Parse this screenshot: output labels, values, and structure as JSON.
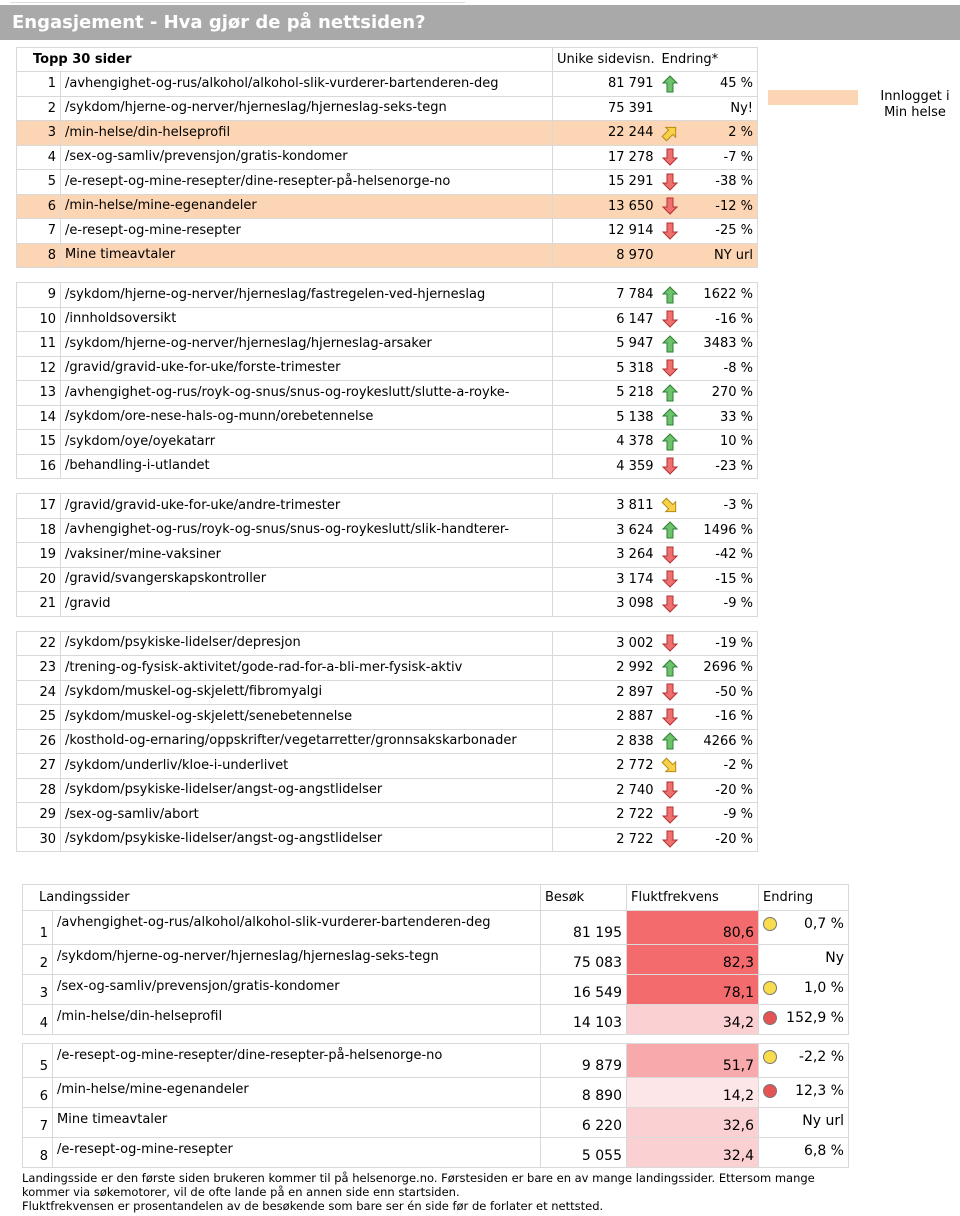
{
  "header": {
    "title": "Engasjement - Hva gjør de på nettsiden?"
  },
  "legend": {
    "label": "Innlogget i Min helse",
    "color": "#fcd5b4"
  },
  "top": {
    "columns": [
      "Topp 30 sider",
      "Unike sidevisn.",
      "Endring*"
    ],
    "highlight_color": "#fcd5b4",
    "groups": [
      [
        {
          "rank": "1",
          "page": "/avhengighet-og-rus/alkohol/alkohol-slik-vurderer-bartenderen-deg",
          "views": "81 791",
          "arrow": "up",
          "change": "45 %"
        },
        {
          "rank": "2",
          "page": "/sykdom/hjerne-og-nerver/hjerneslag/hjerneslag-seks-tegn",
          "views": "75 391",
          "arrow": "none",
          "change": "Ny!"
        },
        {
          "rank": "3",
          "page": "/min-helse/din-helseprofil",
          "views": "22 244",
          "arrow": "up-right",
          "change": "2 %",
          "highlight": true
        },
        {
          "rank": "4",
          "page": "/sex-og-samliv/prevensjon/gratis-kondomer",
          "views": "17 278",
          "arrow": "down",
          "change": "-7 %"
        },
        {
          "rank": "5",
          "page": "/e-resept-og-mine-resepter/dine-resepter-på-helsenorge-no",
          "views": "15 291",
          "arrow": "down",
          "change": "-38 %"
        },
        {
          "rank": "6",
          "page": "/min-helse/mine-egenandeler",
          "views": "13 650",
          "arrow": "down",
          "change": "-12 %",
          "highlight": true
        },
        {
          "rank": "7",
          "page": "/e-resept-og-mine-resepter",
          "views": "12 914",
          "arrow": "down",
          "change": "-25 %"
        },
        {
          "rank": "8",
          "page": "Mine timeavtaler",
          "views": "8 970",
          "arrow": "none",
          "change": "NY url",
          "highlight": true
        }
      ],
      [
        {
          "rank": "9",
          "page": "/sykdom/hjerne-og-nerver/hjerneslag/fastregelen-ved-hjerneslag",
          "views": "7 784",
          "arrow": "up",
          "change": "1622 %"
        },
        {
          "rank": "10",
          "page": "/innholdsoversikt",
          "views": "6 147",
          "arrow": "down",
          "change": "-16 %"
        },
        {
          "rank": "11",
          "page": "/sykdom/hjerne-og-nerver/hjerneslag/hjerneslag-arsaker",
          "views": "5 947",
          "arrow": "up",
          "change": "3483 %"
        },
        {
          "rank": "12",
          "page": "/gravid/gravid-uke-for-uke/forste-trimester",
          "views": "5 318",
          "arrow": "down",
          "change": "-8 %"
        },
        {
          "rank": "13",
          "page": "/avhengighet-og-rus/royk-og-snus/snus-og-roykeslutt/slutte-a-royke-",
          "views": "5 218",
          "arrow": "up",
          "change": "270 %"
        },
        {
          "rank": "14",
          "page": "/sykdom/ore-nese-hals-og-munn/orebetennelse",
          "views": "5 138",
          "arrow": "up",
          "change": "33 %"
        },
        {
          "rank": "15",
          "page": "/sykdom/oye/oyekatarr",
          "views": "4 378",
          "arrow": "up",
          "change": "10 %"
        },
        {
          "rank": "16",
          "page": "/behandling-i-utlandet",
          "views": "4 359",
          "arrow": "down",
          "change": "-23 %"
        }
      ],
      [
        {
          "rank": "17",
          "page": "/gravid/gravid-uke-for-uke/andre-trimester",
          "views": "3 811",
          "arrow": "down-right",
          "change": "-3 %"
        },
        {
          "rank": "18",
          "page": "/avhengighet-og-rus/royk-og-snus/snus-og-roykeslutt/slik-handterer-",
          "views": "3 624",
          "arrow": "up",
          "change": "1496 %"
        },
        {
          "rank": "19",
          "page": "/vaksiner/mine-vaksiner",
          "views": "3 264",
          "arrow": "down",
          "change": "-42 %"
        },
        {
          "rank": "20",
          "page": "/gravid/svangerskapskontroller",
          "views": "3 174",
          "arrow": "down",
          "change": "-15 %"
        },
        {
          "rank": "21",
          "page": "/gravid",
          "views": "3 098",
          "arrow": "down",
          "change": "-9 %"
        }
      ],
      [
        {
          "rank": "22",
          "page": "/sykdom/psykiske-lidelser/depresjon",
          "views": "3 002",
          "arrow": "down",
          "change": "-19 %"
        },
        {
          "rank": "23",
          "page": "/trening-og-fysisk-aktivitet/gode-rad-for-a-bli-mer-fysisk-aktiv",
          "views": "2 992",
          "arrow": "up",
          "change": "2696 %"
        },
        {
          "rank": "24",
          "page": "/sykdom/muskel-og-skjelett/fibromyalgi",
          "views": "2 897",
          "arrow": "down",
          "change": "-50 %"
        },
        {
          "rank": "25",
          "page": "/sykdom/muskel-og-skjelett/senebetennelse",
          "views": "2 887",
          "arrow": "down",
          "change": "-16 %"
        },
        {
          "rank": "26",
          "page": "/kosthold-og-ernaring/oppskrifter/vegetarretter/gronnsakskarbonader",
          "views": "2 838",
          "arrow": "up",
          "change": "4266 %"
        },
        {
          "rank": "27",
          "page": "/sykdom/underliv/kloe-i-underlivet",
          "views": "2 772",
          "arrow": "down-right",
          "change": "-2 %"
        },
        {
          "rank": "28",
          "page": "/sykdom/psykiske-lidelser/angst-og-angstlidelser",
          "views": "2 740",
          "arrow": "down",
          "change": "-20 %"
        },
        {
          "rank": "29",
          "page": "/sex-og-samliv/abort",
          "views": "2 722",
          "arrow": "down",
          "change": "-9 %"
        },
        {
          "rank": "30",
          "page": "/sykdom/psykiske-lidelser/angst-og-angstlidelser",
          "views": "2 722",
          "arrow": "down",
          "change": "-20 %"
        }
      ]
    ]
  },
  "landing": {
    "columns": [
      "Landingssider",
      "Besøk",
      "Fluktfrekvens",
      "Endring"
    ],
    "groups": [
      [
        {
          "rank": "1",
          "page": "/avhengighet-og-rus/alkohol/alkohol-slik-vurderer-bartenderen-deg",
          "visits": "81 195",
          "bounce": "80,6",
          "bounce_color": "#f46b6e",
          "dot": "yellow",
          "change": "0,7 %"
        },
        {
          "rank": "2",
          "page": "/sykdom/hjerne-og-nerver/hjerneslag/hjerneslag-seks-tegn",
          "visits": "75 083",
          "bounce": "82,3",
          "bounce_color": "#f46b6e",
          "dot": "none",
          "change": "Ny"
        },
        {
          "rank": "3",
          "page": "/sex-og-samliv/prevensjon/gratis-kondomer",
          "visits": "16 549",
          "bounce": "78,1",
          "bounce_color": "#f46b6e",
          "dot": "yellow",
          "change": "1,0 %"
        },
        {
          "rank": "4",
          "page": "/min-helse/din-helseprofil",
          "visits": "14 103",
          "bounce": "34,2",
          "bounce_color": "#fbd0d2",
          "dot": "red",
          "change": "152,9 %"
        }
      ],
      [
        {
          "rank": "5",
          "page": "/e-resept-og-mine-resepter/dine-resepter-på-helsenorge-no",
          "visits": "9 879",
          "bounce": "51,7",
          "bounce_color": "#f7a9ac",
          "dot": "yellow",
          "change": "-2,2 %"
        },
        {
          "rank": "6",
          "page": "/min-helse/mine-egenandeler",
          "visits": "8 890",
          "bounce": "14,2",
          "bounce_color": "#fde6e7",
          "dot": "red",
          "change": "12,3 %"
        },
        {
          "rank": "7",
          "page": "Mine timeavtaler",
          "visits": "6 220",
          "bounce": "32,6",
          "bounce_color": "#fbd0d2",
          "dot": "none",
          "change": "Ny url"
        },
        {
          "rank": "8",
          "page": "/e-resept-og-mine-resepter",
          "visits": "5 055",
          "bounce": "32,4",
          "bounce_color": "#fbd0d2",
          "dot": "none",
          "change": "6,8 %"
        }
      ]
    ]
  },
  "footer": [
    "Landingsside er den første siden brukeren kommer til på helsenorge.no. Førstesiden er bare en av mange landingssider. Ettersom mange kommer via søkemotorer, vil de ofte lande på en annen side enn startsiden.",
    "Fluktfrekvensen er prosentandelen av de besøkende som bare ser én side før de forlater et nettsted."
  ]
}
